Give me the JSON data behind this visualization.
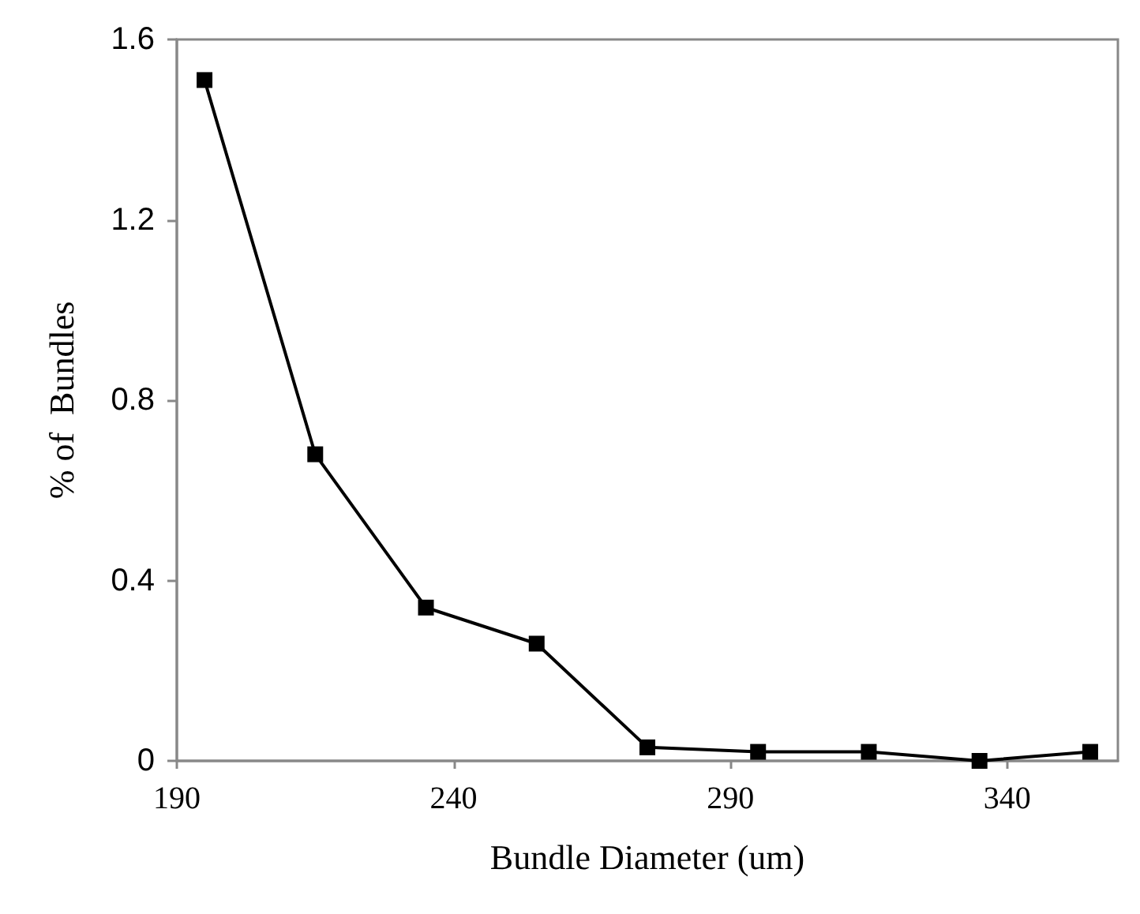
{
  "chart_data": {
    "type": "line",
    "xlabel": "Bundle Diameter (um)",
    "ylabel": "% of  Bundles",
    "x": [
      195,
      215,
      235,
      255,
      275,
      295,
      315,
      335,
      355
    ],
    "series": [
      {
        "color": "#000000",
        "values": [
          1.51,
          0.68,
          0.34,
          0.26,
          0.03,
          0.02,
          0.02,
          0,
          0.02
        ]
      }
    ],
    "xlim": [
      190,
      360
    ],
    "xticks": [
      190,
      240,
      290,
      340
    ],
    "ylim": [
      0,
      1.6
    ],
    "yticks": [
      0,
      0.4,
      0.8,
      1.2,
      1.6
    ],
    "grid": false,
    "marker": "square",
    "line_style": "solid"
  }
}
